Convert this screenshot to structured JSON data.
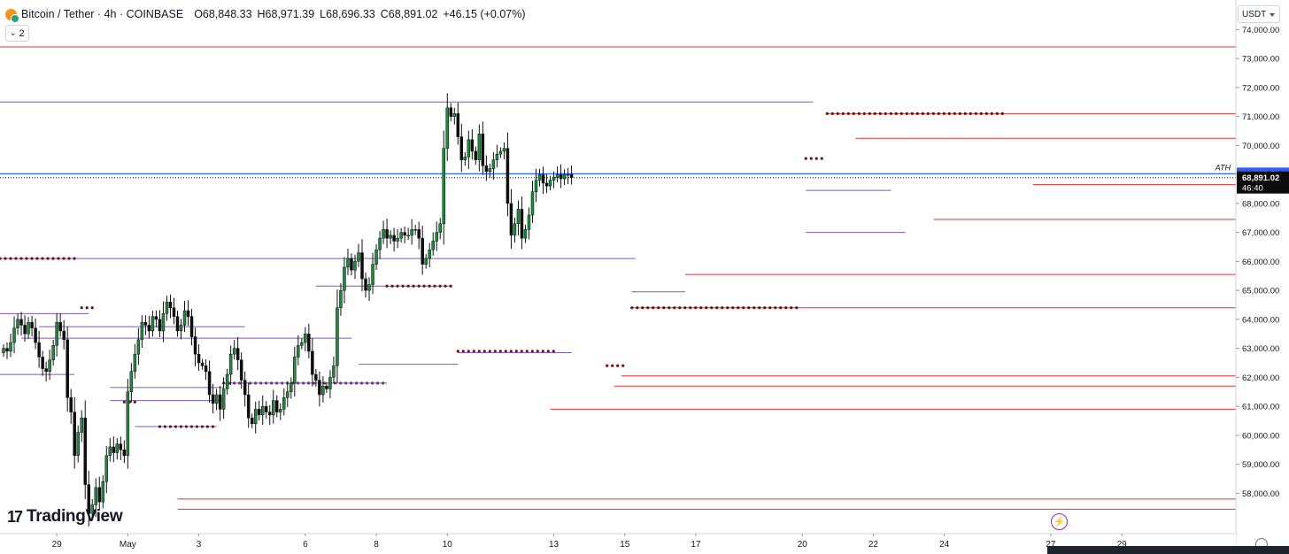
{
  "header": {
    "symbol": "Bitcoin / Tether · 4h · COINBASE",
    "open": "O68,848.33",
    "high": "H68,971.39",
    "low": "L68,696.33",
    "close": "C68,891.02",
    "change": "+46.15 (+0.07%)",
    "indicator_badge": "2",
    "coin_icon": "bitcoin-tether-icon"
  },
  "currency_selector": "USDT",
  "brand": "TradingView",
  "colors": {
    "bull": "#1b8a3a",
    "bear": "#0d0d0d",
    "resistance": "#e5322d",
    "range_line": "#7e57c2",
    "dot_line": "#6d1212",
    "ath_line": "#2962ff",
    "axis_text": "#131722",
    "grid_separator": "#d1d4dc"
  },
  "chart_data": {
    "type": "candlestick",
    "instrument": "Bitcoin / Tether",
    "timeframe": "4h",
    "exchange": "COINBASE",
    "ylim": [
      57400,
      75000
    ],
    "y_ticks": [
      "74,000.00",
      "73,000.00",
      "72,000.00",
      "71,000.00",
      "70,000.00",
      "69,000.00",
      "68,000.00",
      "67,000.00",
      "66,000.00",
      "65,000.00",
      "64,000.00",
      "63,000.00",
      "62,000.00",
      "61,000.00",
      "60,000.00",
      "59,000.00",
      "58,000.00"
    ],
    "x_ticks": [
      {
        "label": "29",
        "bar": 15
      },
      {
        "label": "May",
        "bar": 35
      },
      {
        "label": "3",
        "bar": 55
      },
      {
        "label": "6",
        "bar": 85
      },
      {
        "label": "8",
        "bar": 105
      },
      {
        "label": "10",
        "bar": 125
      },
      {
        "label": "13",
        "bar": 155
      },
      {
        "label": "15",
        "bar": 175
      },
      {
        "label": "17",
        "bar": 195
      },
      {
        "label": "20",
        "bar": 225
      },
      {
        "label": "22",
        "bar": 245
      },
      {
        "label": "24",
        "bar": 265
      },
      {
        "label": "27",
        "bar": 295
      },
      {
        "label": "29",
        "bar": 315
      }
    ],
    "price_labels": [
      {
        "kind": "ath",
        "value": 69023.79,
        "text": "69,023.79",
        "note": "ATH"
      },
      {
        "kind": "last",
        "value": 68891.02,
        "text": "68,891.02",
        "countdown": "46:40"
      }
    ],
    "closes": [
      63000,
      62900,
      63200,
      63700,
      64000,
      63800,
      63500,
      63900,
      63700,
      63200,
      62700,
      62300,
      62200,
      62600,
      63100,
      63900,
      63600,
      63300,
      61300,
      60800,
      59300,
      60100,
      60600,
      58300,
      57300,
      57600,
      58200,
      57700,
      58400,
      59300,
      59600,
      59400,
      59700,
      59500,
      59300,
      61500,
      62200,
      62800,
      63300,
      63900,
      63800,
      63600,
      64100,
      64000,
      63600,
      64200,
      64600,
      64400,
      64100,
      63600,
      63800,
      64300,
      64100,
      63400,
      62800,
      62500,
      62400,
      62200,
      61400,
      61100,
      61400,
      60900,
      61600,
      62100,
      62800,
      63000,
      62600,
      61900,
      61400,
      60600,
      60400,
      60900,
      60700,
      61000,
      60800,
      60700,
      61200,
      60800,
      60900,
      61300,
      61500,
      61800,
      62700,
      63100,
      63200,
      63500,
      62900,
      62100,
      61900,
      61400,
      61700,
      61600,
      62000,
      62400,
      64400,
      65000,
      65800,
      66100,
      65700,
      66000,
      66300,
      65400,
      65000,
      65200,
      65900,
      66400,
      66800,
      67100,
      66800,
      66900,
      66700,
      66800,
      67000,
      66900,
      66900,
      67100,
      67100,
      66800,
      65900,
      66100,
      66400,
      66700,
      67000,
      67300,
      69900,
      71300,
      71000,
      71100,
      70300,
      69500,
      69600,
      70200,
      69800,
      69500,
      70400,
      69300,
      69100,
      69200,
      69500,
      69700,
      69800,
      69900,
      68000,
      66900,
      67300,
      67800,
      66800,
      67100,
      67600,
      68400,
      68800,
      69000,
      68700,
      68600,
      68800,
      68900,
      69000,
      68850,
      69000,
      69000,
      68891
    ],
    "highs_lows_note": "each candle also has high/low wicks derived from close-to-close moves",
    "levels": [
      {
        "price": 73400,
        "style": "solid",
        "color": "resistance",
        "from_bar": 0,
        "to_bar": 336
      },
      {
        "price": 71500,
        "style": "solid",
        "color": "range_line",
        "from_bar": 0,
        "to_bar": 228
      },
      {
        "price": 71100,
        "style": "solid",
        "color": "resistance",
        "from_bar": 232,
        "to_bar": 336
      },
      {
        "price": 71100,
        "style": "dots",
        "color": "dot_line",
        "from_bar": 232,
        "to_bar": 282
      },
      {
        "price": 70250,
        "style": "solid",
        "color": "resistance",
        "from_bar": 240,
        "to_bar": 336
      },
      {
        "price": 69550,
        "style": "dots",
        "color": "dot_line",
        "from_bar": 226,
        "to_bar": 231
      },
      {
        "price": 69023.79,
        "style": "solid",
        "color": "ath_line",
        "from_bar": 0,
        "to_bar": 336
      },
      {
        "price": 68891.02,
        "style": "dotted",
        "color": "axis_text",
        "from_bar": 0,
        "to_bar": 336
      },
      {
        "price": 68650,
        "style": "solid",
        "color": "resistance",
        "from_bar": 290,
        "to_bar": 336
      },
      {
        "price": 68450,
        "style": "solid",
        "color": "range_line",
        "from_bar": 226,
        "to_bar": 250
      },
      {
        "price": 67450,
        "style": "solid",
        "color": "resistance",
        "from_bar": 262,
        "to_bar": 336
      },
      {
        "price": 67000,
        "style": "solid",
        "color": "range_line",
        "from_bar": 226,
        "to_bar": 254
      },
      {
        "price": 66100,
        "style": "solid",
        "color": "range_line",
        "from_bar": 0,
        "to_bar": 178
      },
      {
        "price": 66100,
        "style": "dots",
        "color": "dot_line",
        "from_bar": 0,
        "to_bar": 20
      },
      {
        "price": 65550,
        "style": "solid",
        "color": "resistance",
        "from_bar": 192,
        "to_bar": 336
      },
      {
        "price": 65150,
        "style": "solid",
        "color": "range_line",
        "from_bar": 88,
        "to_bar": 126
      },
      {
        "price": 65150,
        "style": "dots",
        "color": "dot_line",
        "from_bar": 108,
        "to_bar": 126
      },
      {
        "price": 64950,
        "style": "solid",
        "color": "range_line",
        "from_bar": 177,
        "to_bar": 192
      },
      {
        "price": 64400,
        "style": "solid",
        "color": "resistance",
        "from_bar": 177,
        "to_bar": 336
      },
      {
        "price": 64400,
        "style": "dots",
        "color": "dot_line",
        "from_bar": 177,
        "to_bar": 224
      },
      {
        "price": 64400,
        "style": "dots",
        "color": "dot_line",
        "from_bar": 22,
        "to_bar": 25
      },
      {
        "price": 64200,
        "style": "solid",
        "color": "range_line",
        "from_bar": 0,
        "to_bar": 24
      },
      {
        "price": 63750,
        "style": "solid",
        "color": "range_line",
        "from_bar": 10,
        "to_bar": 68
      },
      {
        "price": 63350,
        "style": "solid",
        "color": "range_line",
        "from_bar": 5,
        "to_bar": 98
      },
      {
        "price": 62900,
        "style": "dots",
        "color": "dot_line",
        "from_bar": 128,
        "to_bar": 156
      },
      {
        "price": 62850,
        "style": "solid",
        "color": "range_line",
        "from_bar": 128,
        "to_bar": 160
      },
      {
        "price": 62450,
        "style": "solid",
        "color": "range_line",
        "from_bar": 100,
        "to_bar": 128
      },
      {
        "price": 62400,
        "style": "dots",
        "color": "dot_line",
        "from_bar": 170,
        "to_bar": 175
      },
      {
        "price": 62100,
        "style": "solid",
        "color": "range_line",
        "from_bar": 0,
        "to_bar": 20
      },
      {
        "price": 62050,
        "style": "solid",
        "color": "resistance",
        "from_bar": 174,
        "to_bar": 336
      },
      {
        "price": 61800,
        "style": "dots",
        "color": "dot_line",
        "from_bar": 62,
        "to_bar": 108
      },
      {
        "price": 61800,
        "style": "solid",
        "color": "range_line",
        "from_bar": 62,
        "to_bar": 108
      },
      {
        "price": 61700,
        "style": "solid",
        "color": "resistance",
        "from_bar": 172,
        "to_bar": 336
      },
      {
        "price": 61650,
        "style": "solid",
        "color": "range_line",
        "from_bar": 30,
        "to_bar": 62
      },
      {
        "price": 61200,
        "style": "solid",
        "color": "range_line",
        "from_bar": 30,
        "to_bar": 62
      },
      {
        "price": 61150,
        "style": "dots",
        "color": "dot_line",
        "from_bar": 34,
        "to_bar": 37
      },
      {
        "price": 60900,
        "style": "solid",
        "color": "resistance",
        "from_bar": 154,
        "to_bar": 336
      },
      {
        "price": 60300,
        "style": "solid",
        "color": "range_line",
        "from_bar": 37,
        "to_bar": 60
      },
      {
        "price": 60300,
        "style": "dots",
        "color": "dot_line",
        "from_bar": 44,
        "to_bar": 59
      },
      {
        "price": 57800,
        "style": "solid",
        "color": "resistance",
        "from_bar": 49,
        "to_bar": 336
      },
      {
        "price": 57450,
        "style": "solid",
        "color": "resistance",
        "from_bar": 49,
        "to_bar": 336
      }
    ]
  }
}
